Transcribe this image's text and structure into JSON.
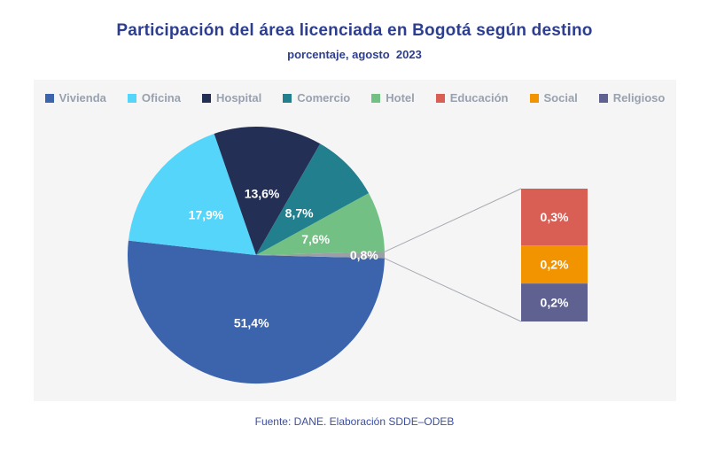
{
  "title": "Participación del área licenciada en Bogotá según destino",
  "subtitle": "porcentaje, agosto  2023",
  "source": "Fuente: DANE. Elaboración SDDE–ODEB",
  "chart_data": {
    "type": "pie",
    "title": "Participación del área licenciada en Bogotá según destino",
    "subtitle": "porcentaje, agosto 2023",
    "unit": "%",
    "decimal_separator": ",",
    "legend_position": "top",
    "grid": false,
    "slices": [
      {
        "label": "Vivienda",
        "value": 51.4,
        "display": "51,4%",
        "color": "#3c64ad"
      },
      {
        "label": "Oficina",
        "value": 17.9,
        "display": "17,9%",
        "color": "#55d5fa"
      },
      {
        "label": "Hospital",
        "value": 13.6,
        "display": "13,6%",
        "color": "#232f55"
      },
      {
        "label": "Comercio",
        "value": 8.7,
        "display": "8,7%",
        "color": "#217f8e"
      },
      {
        "label": "Hotel",
        "value": 7.6,
        "display": "7,6%",
        "color": "#72c083"
      },
      {
        "label": "Educación + Social + Religioso",
        "value": 0.8,
        "display": "0,8%",
        "color": "#9aa0a6"
      }
    ],
    "breakout": [
      {
        "label": "Educación",
        "value": 0.3,
        "display": "0,3%",
        "color": "#d95f55"
      },
      {
        "label": "Social",
        "value": 0.2,
        "display": "0,2%",
        "color": "#f29300"
      },
      {
        "label": "Religioso",
        "value": 0.2,
        "display": "0,2%",
        "color": "#5f6290"
      }
    ],
    "legend": [
      {
        "label": "Vivienda",
        "color": "#3c64ad"
      },
      {
        "label": "Oficina",
        "color": "#55d5fa"
      },
      {
        "label": "Hospital",
        "color": "#232f55"
      },
      {
        "label": "Comercio",
        "color": "#217f8e"
      },
      {
        "label": "Hotel",
        "color": "#72c083"
      },
      {
        "label": "Educación",
        "color": "#d95f55"
      },
      {
        "label": "Social",
        "color": "#f29300"
      },
      {
        "label": "Religioso",
        "color": "#5f6290"
      }
    ]
  }
}
